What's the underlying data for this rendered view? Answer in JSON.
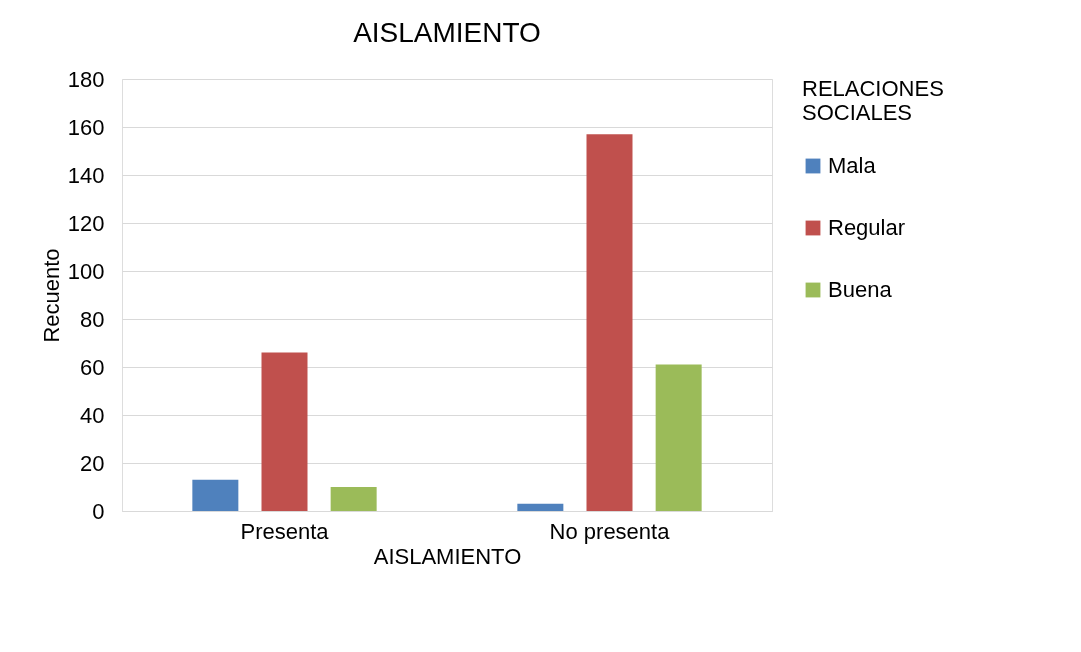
{
  "chart_data": {
    "type": "bar",
    "title": "AISLAMIENTO",
    "xlabel": "AISLAMIENTO",
    "ylabel": "Recuento",
    "legend_title": "RELACIONES SOCIALES",
    "categories": [
      "Presenta",
      "No presenta"
    ],
    "series": [
      {
        "name": "Mala",
        "color": "#4f81bd",
        "values": [
          13,
          3
        ]
      },
      {
        "name": "Regular",
        "color": "#c0504d",
        "values": [
          66,
          157
        ]
      },
      {
        "name": "Buena",
        "color": "#9bbb59",
        "values": [
          10,
          61
        ]
      }
    ],
    "ylim": [
      0,
      180
    ],
    "yticks": [
      0,
      20,
      40,
      60,
      80,
      100,
      120,
      140,
      160,
      180
    ],
    "grid": "y",
    "legend": "right"
  }
}
